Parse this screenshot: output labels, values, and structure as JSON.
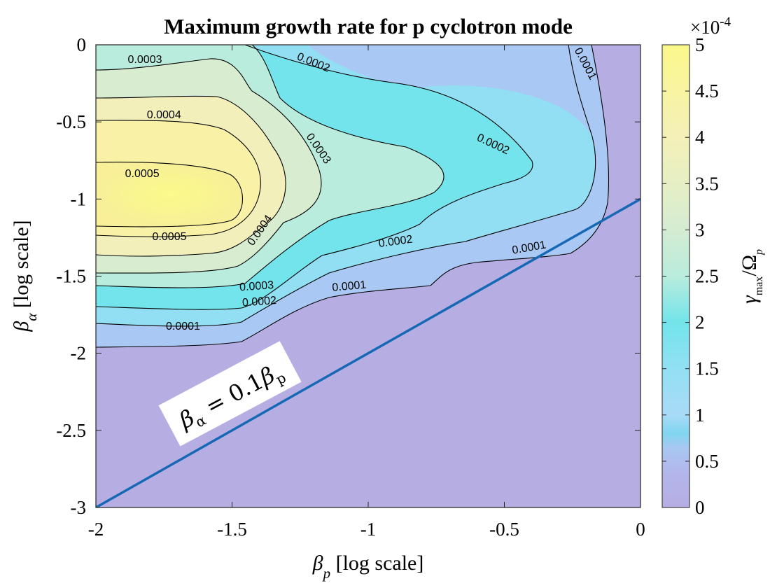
{
  "chart_data": {
    "type": "contour",
    "title": "Maximum growth rate for p cyclotron mode",
    "xlabel": "β_p [log scale]",
    "ylabel": "β_α [log scale]",
    "xlim": [
      -2,
      0
    ],
    "ylim": [
      -3,
      0
    ],
    "xticks": [
      -2,
      -1.5,
      -1,
      -0.5,
      0
    ],
    "xtick_labels": [
      "-2",
      "-1.5",
      "-1",
      "-0.5",
      "0"
    ],
    "yticks": [
      0,
      -0.5,
      -1,
      -1.5,
      -2,
      -2.5,
      -3
    ],
    "ytick_labels": [
      "0",
      "-0.5",
      "-1",
      "-1.5",
      "-2",
      "-2.5",
      "-3"
    ],
    "colorbar": {
      "label": "γmax/Ωp",
      "range": [
        0,
        5
      ],
      "multiplier": "×10^-4",
      "ticks": [
        0,
        0.5,
        1,
        1.5,
        2,
        2.5,
        3,
        3.5,
        4,
        4.5,
        5
      ],
      "tick_labels": [
        "0",
        "0.5",
        "1",
        "1.5",
        "2",
        "2.5",
        "3",
        "3.5",
        "4",
        "4.5",
        "5"
      ]
    },
    "contour_levels": [
      0.0001,
      0.0002,
      0.0003,
      0.0004,
      0.0005
    ],
    "contour_labels": [
      {
        "text": "0.0003",
        "x": -1.82,
        "y": -0.09,
        "angle": 0
      },
      {
        "text": "0.0002",
        "x": -1.2,
        "y": -0.11,
        "angle": 22
      },
      {
        "text": "0.0001",
        "x": -0.2,
        "y": -0.12,
        "angle": 62
      },
      {
        "text": "0.0004",
        "x": -1.75,
        "y": -0.45,
        "angle": 0
      },
      {
        "text": "0.0003",
        "x": -1.18,
        "y": -0.67,
        "angle": 55
      },
      {
        "text": "0.0002",
        "x": -0.54,
        "y": -0.64,
        "angle": 25
      },
      {
        "text": "0.0005",
        "x": -1.83,
        "y": -0.83,
        "angle": 0
      },
      {
        "text": "0.0005",
        "x": -1.73,
        "y": -1.24,
        "angle": 0
      },
      {
        "text": "0.0004",
        "x": -1.4,
        "y": -1.2,
        "angle": -55
      },
      {
        "text": "0.0002",
        "x": -0.9,
        "y": -1.27,
        "angle": -8
      },
      {
        "text": "0.0001",
        "x": -0.41,
        "y": -1.31,
        "angle": -10
      },
      {
        "text": "0.0003",
        "x": -1.41,
        "y": -1.56,
        "angle": -4
      },
      {
        "text": "0.0001",
        "x": -1.07,
        "y": -1.56,
        "angle": -5
      },
      {
        "text": "0.0002",
        "x": -1.4,
        "y": -1.66,
        "angle": -4
      },
      {
        "text": "0.0001",
        "x": -1.68,
        "y": -1.82,
        "angle": 0
      }
    ],
    "line": {
      "label": "βα = 0.1βp",
      "relation": "log10(βα) = log10(βp) - 1",
      "x": [
        -2,
        0
      ],
      "y": [
        -3,
        -1
      ],
      "color": "#1668b4"
    }
  }
}
